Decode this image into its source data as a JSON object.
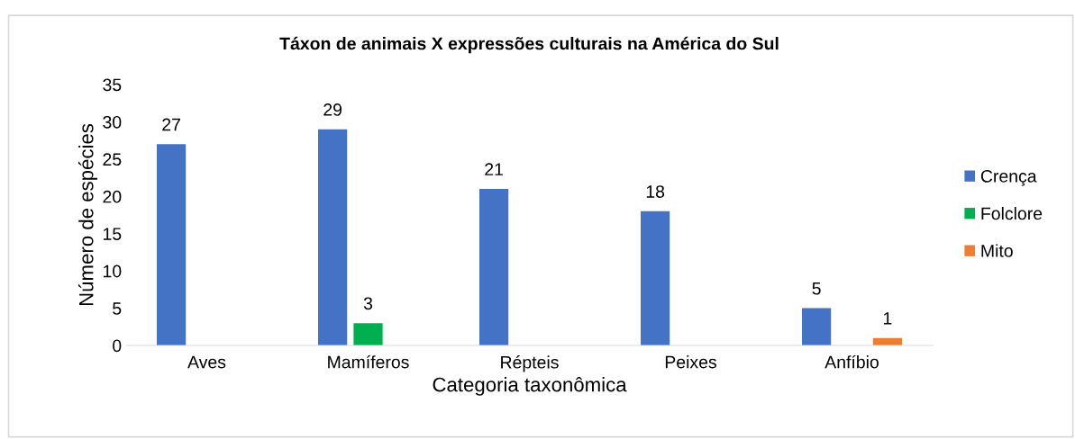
{
  "chart_data": {
    "type": "bar",
    "title": "Táxon de animais X expressões culturais na América do Sul",
    "xlabel": "Categoria taxonômica",
    "ylabel": "Número de espécies",
    "categories": [
      "Aves",
      "Mamíferos",
      "Répteis",
      "Peixes",
      "Anfíbio"
    ],
    "series": [
      {
        "name": "Crença",
        "color": "#4472c4",
        "values": [
          27,
          29,
          21,
          18,
          5
        ]
      },
      {
        "name": "Folclore",
        "color": "#00b050",
        "values": [
          null,
          3,
          null,
          null,
          null
        ]
      },
      {
        "name": "Mito",
        "color": "#ed7d31",
        "values": [
          null,
          null,
          null,
          null,
          1
        ]
      }
    ],
    "ylim": [
      0,
      35
    ],
    "yticks": [
      0,
      5,
      10,
      15,
      20,
      25,
      30,
      35
    ],
    "grid": false,
    "legend": "right",
    "data_labels": true
  }
}
